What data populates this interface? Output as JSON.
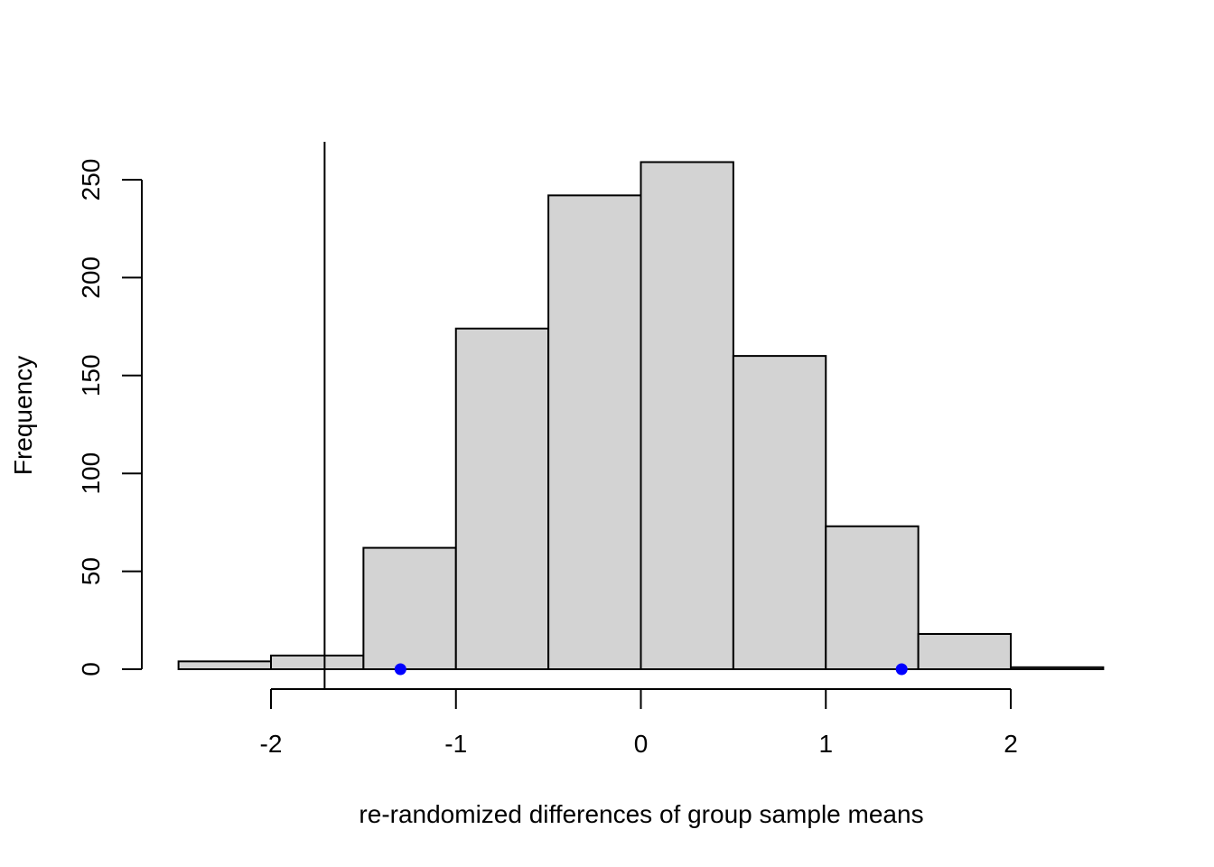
{
  "chart_data": {
    "type": "bar",
    "title": "",
    "xlabel": "re-randomized differences of group sample means",
    "ylabel": "Frequency",
    "bin_edges": [
      -2.5,
      -2.0,
      -1.5,
      -1.0,
      -0.5,
      0.0,
      0.5,
      1.0,
      1.5,
      2.0,
      2.5
    ],
    "values": [
      4,
      7,
      62,
      174,
      242,
      259,
      160,
      73,
      18,
      1
    ],
    "x_ticks": [
      -2,
      -1,
      0,
      1,
      2
    ],
    "x_tick_labels": [
      "-2",
      "-1",
      "0",
      "1",
      "2"
    ],
    "y_ticks": [
      0,
      50,
      100,
      150,
      200,
      250
    ],
    "y_tick_labels": [
      "0",
      "50",
      "100",
      "150",
      "200",
      "250"
    ],
    "xlim": [
      -2.5,
      2.5
    ],
    "ylim": [
      0,
      260
    ],
    "vline_x": -1.71,
    "points": [
      {
        "x": -1.3,
        "y": 0
      },
      {
        "x": 1.41,
        "y": 0
      }
    ],
    "colors": {
      "bar_fill": "#d3d3d3",
      "bar_stroke": "#000000",
      "point": "#0000ff",
      "line": "#000000"
    },
    "grid": false
  }
}
